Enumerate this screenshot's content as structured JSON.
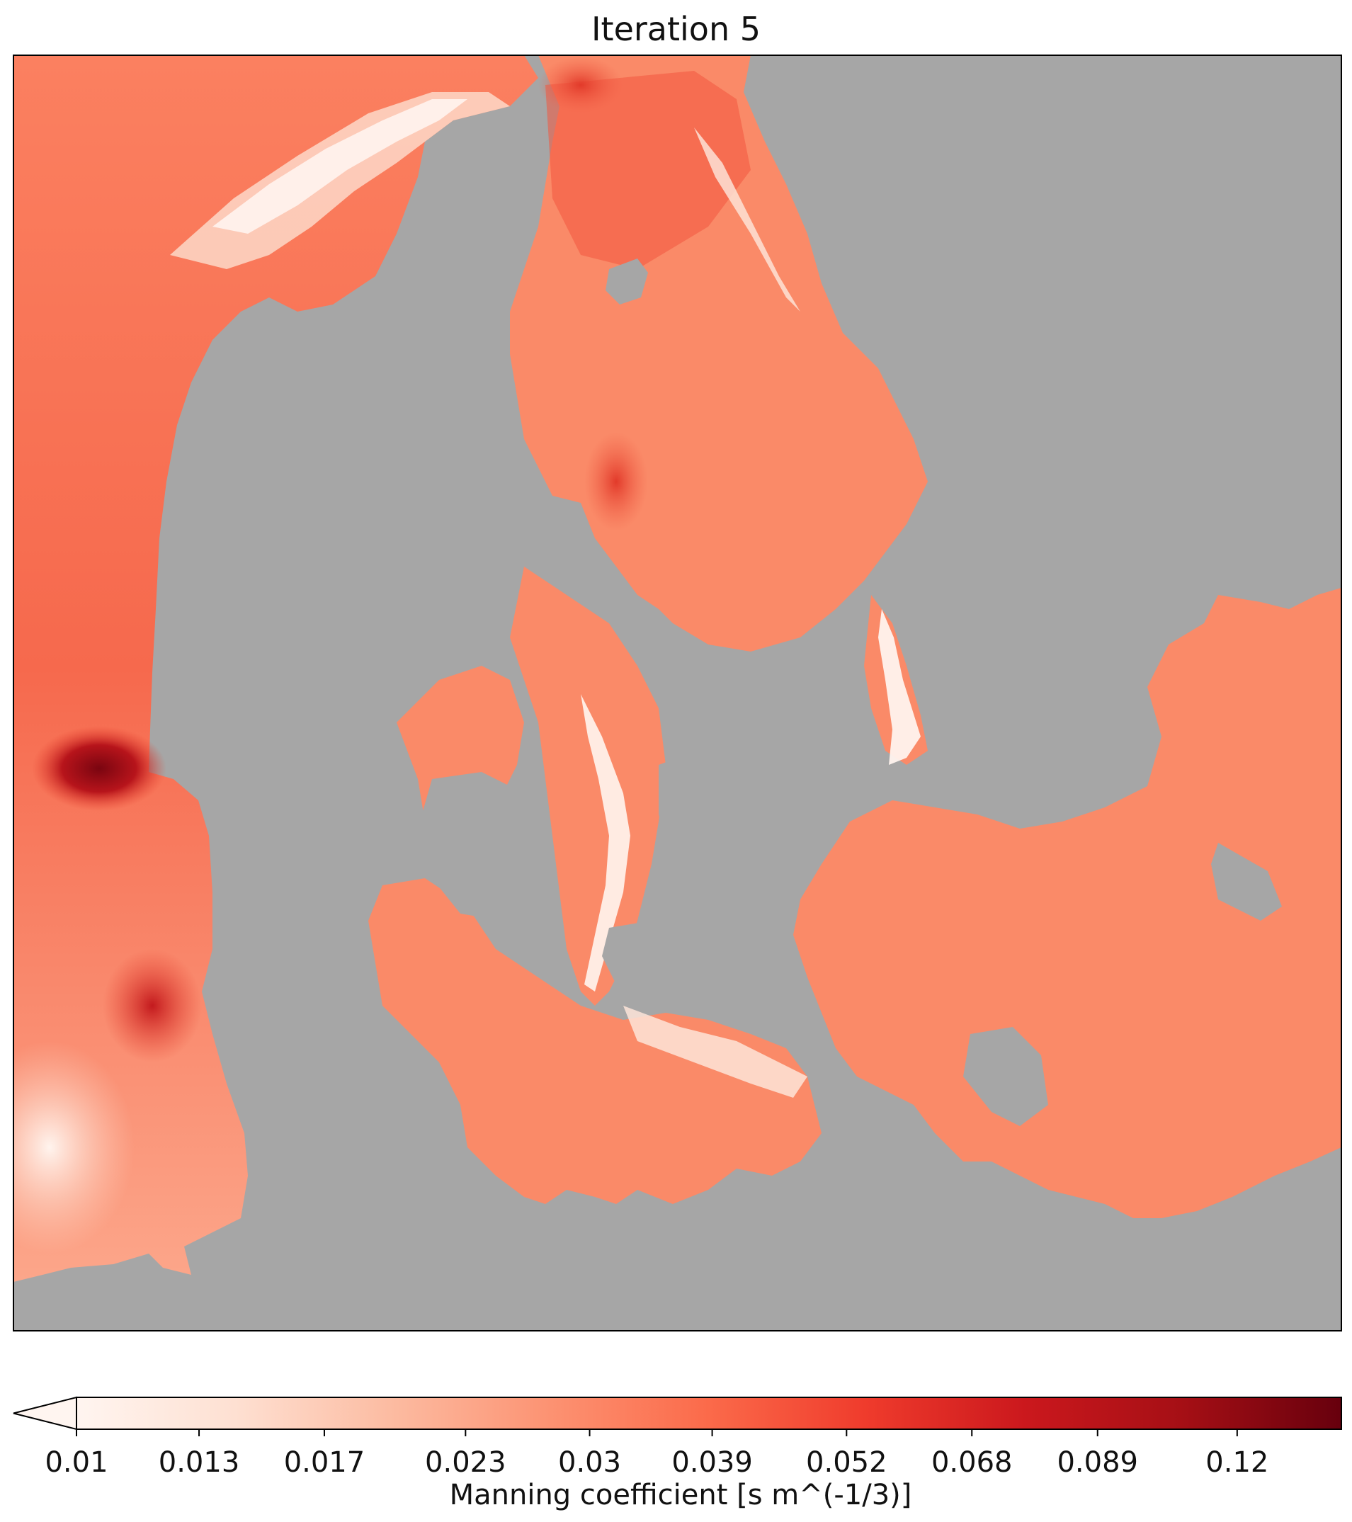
{
  "title": "Iteration 5",
  "map": {
    "land_color": "#a6a6a6",
    "frame_color": "#000000"
  },
  "colorbar": {
    "label": "Manning coefficient [s m^(-1/3)]",
    "colormap": "Reds",
    "scale": "log",
    "extend": "min",
    "range": [
      0.01,
      0.15
    ],
    "ticks": [
      {
        "value": 0.01,
        "label": "0.01"
      },
      {
        "value": 0.013,
        "label": "0.013"
      },
      {
        "value": 0.017,
        "label": "0.017"
      },
      {
        "value": 0.023,
        "label": "0.023"
      },
      {
        "value": 0.03,
        "label": "0.03"
      },
      {
        "value": 0.039,
        "label": "0.039"
      },
      {
        "value": 0.052,
        "label": "0.052"
      },
      {
        "value": 0.068,
        "label": "0.068"
      },
      {
        "value": 0.089,
        "label": "0.089"
      },
      {
        "value": 0.12,
        "label": "0.12"
      }
    ],
    "stops": [
      "#fff5f0",
      "#fee0d2",
      "#fcbba1",
      "#fc9272",
      "#fb6a4a",
      "#ef3b2c",
      "#cb181d",
      "#a50f15",
      "#67000d"
    ]
  }
}
